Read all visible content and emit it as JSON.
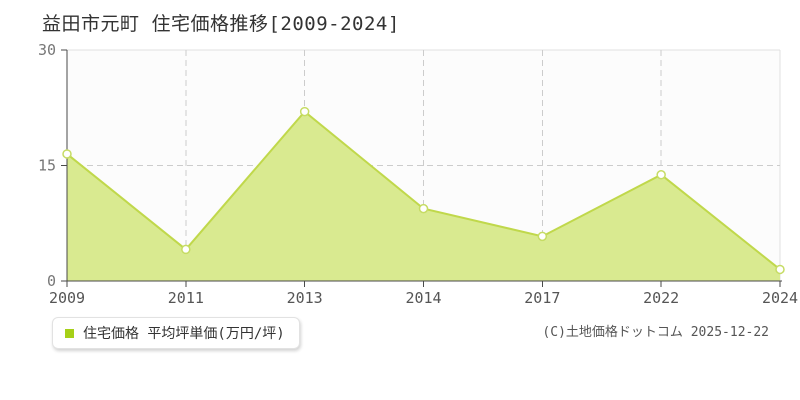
{
  "header": {
    "title": "益田市元町 住宅価格推移[2009-2024]"
  },
  "legend": {
    "label": "住宅価格 平均坪単価(万円/坪)",
    "marker_color": "#a6d018"
  },
  "footer": {
    "copyright": "(C)土地価格ドットコム 2025-12-22"
  },
  "chart_data": {
    "type": "area",
    "title": "益田市元町 住宅価格推移[2009-2024]",
    "categories": [
      "2009",
      "2011",
      "2013",
      "2014",
      "2017",
      "2022",
      "2024"
    ],
    "series": [
      {
        "name": "住宅価格 平均坪単価(万円/坪)",
        "values": [
          16.5,
          4.1,
          22.0,
          9.4,
          5.8,
          13.8,
          1.5
        ]
      }
    ],
    "xlabel": "",
    "ylabel": "",
    "ylim": [
      0,
      30
    ],
    "yticks": [
      0,
      15,
      30
    ],
    "grid": true,
    "legend_position": "bottom-left",
    "colors": {
      "area_fill": "#d9ea90",
      "line": "#c0d84b",
      "marker_fill": "#ffffff",
      "marker_stroke": "#c6dc64",
      "grid_dashed": "#cccccc",
      "axis": "#4a4a4a",
      "plot_border": "#e0e0e0",
      "plot_background": "#fcfcfc"
    }
  }
}
